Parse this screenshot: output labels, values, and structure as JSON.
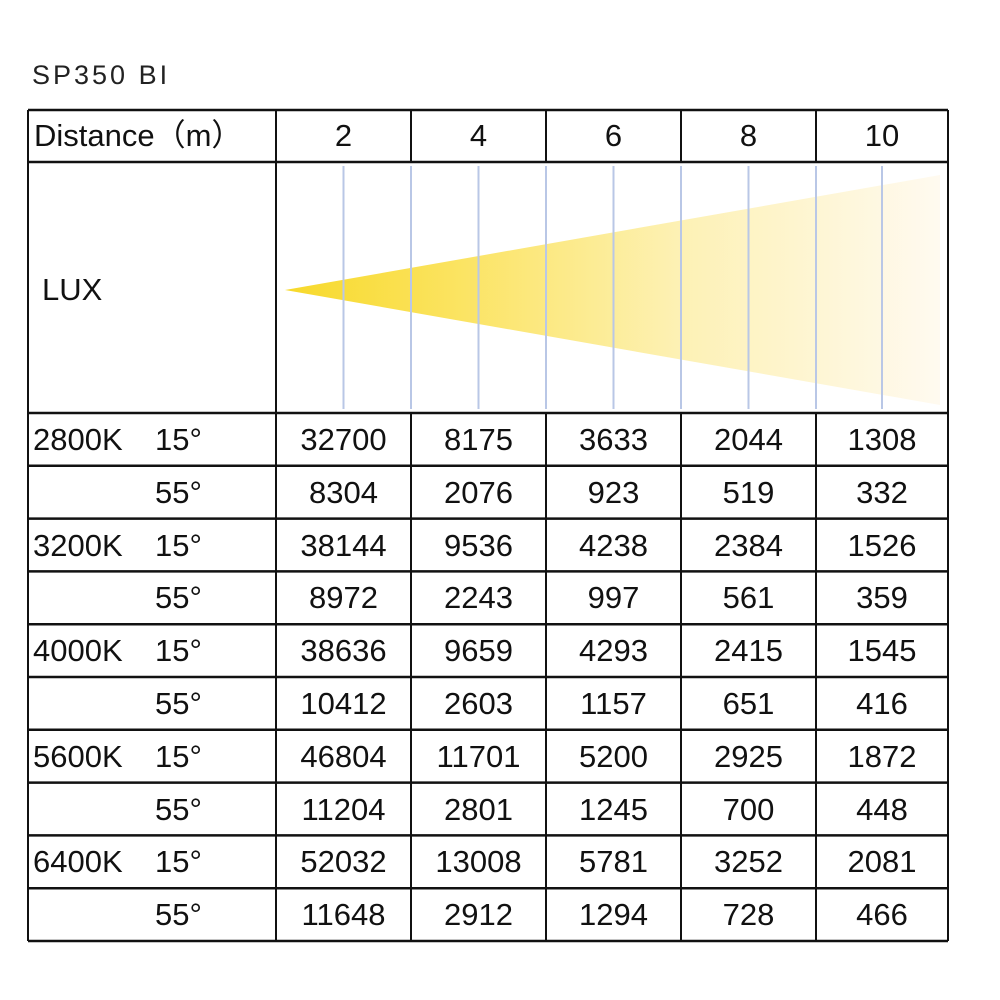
{
  "header": {
    "title": "SP350 BI"
  },
  "table": {
    "distance_label": "Distance（m）",
    "distances": [
      "2",
      "4",
      "6",
      "8",
      "10"
    ],
    "lux_label": "LUX",
    "rows": [
      {
        "cct": "2800K",
        "angle": "15°",
        "values": [
          32700,
          8175,
          3633,
          2044,
          1308
        ]
      },
      {
        "angle": "55°",
        "values": [
          8304,
          2076,
          923,
          519,
          332
        ]
      },
      {
        "cct": "3200K",
        "angle": "15°",
        "values": [
          38144,
          9536,
          4238,
          2384,
          1526
        ]
      },
      {
        "angle": "55°",
        "values": [
          8972,
          2243,
          997,
          561,
          359
        ]
      },
      {
        "cct": "4000K",
        "angle": "15°",
        "values": [
          38636,
          9659,
          4293,
          2415,
          1545
        ]
      },
      {
        "angle": "55°",
        "values": [
          10412,
          2603,
          1157,
          651,
          416
        ]
      },
      {
        "cct": "5600K",
        "angle": "15°",
        "values": [
          46804,
          11701,
          5200,
          2925,
          1872
        ]
      },
      {
        "angle": "55°",
        "values": [
          11204,
          2801,
          1245,
          700,
          448
        ]
      },
      {
        "cct": "6400K",
        "angle": "15°",
        "values": [
          52032,
          13008,
          5781,
          3252,
          2081
        ]
      },
      {
        "angle": "55°",
        "values": [
          11648,
          2912,
          1294,
          728,
          466
        ]
      }
    ]
  }
}
